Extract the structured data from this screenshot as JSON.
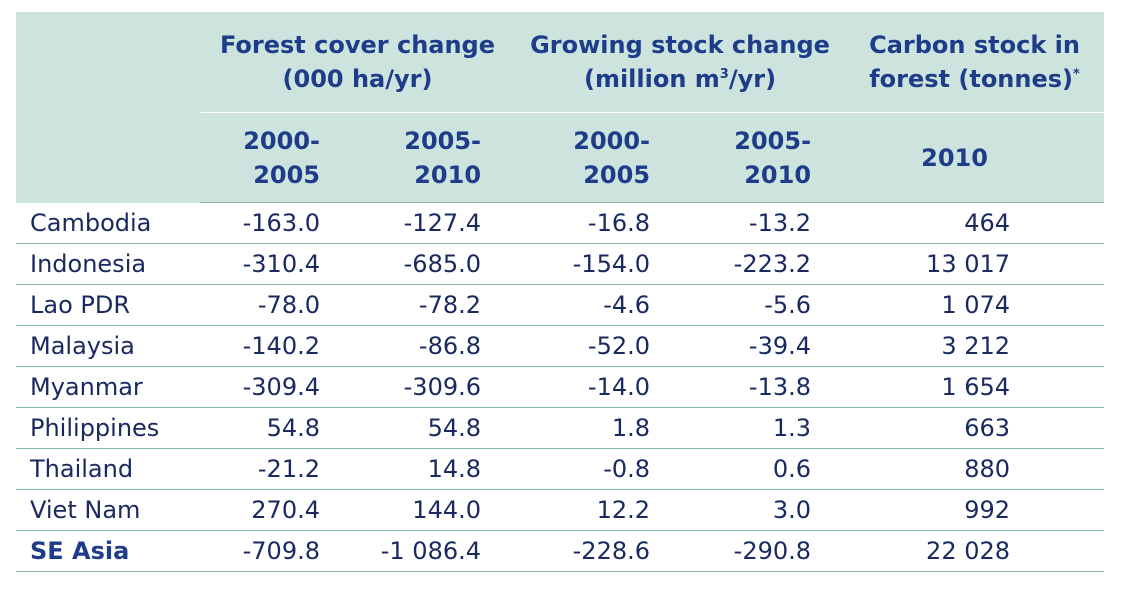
{
  "header": {
    "groups": {
      "forest_cover_line1": "Forest cover change",
      "forest_cover_line2": "(000 ha/yr)",
      "growing_stock_line1": "Growing stock change",
      "growing_stock_line2_pre": "(million m",
      "growing_stock_sup": "3",
      "growing_stock_line2_post": "/yr)",
      "carbon_line1": "Carbon stock in",
      "carbon_line2": "forest (tonnes)",
      "carbon_sup": "*"
    },
    "periods": {
      "fc_p1_line1": "2000-",
      "fc_p1_line2": "2005",
      "fc_p2_line1": "2005-",
      "fc_p2_line2": "2010",
      "gs_p1_line1": "2000-",
      "gs_p1_line2": "2005",
      "gs_p2_line1": "2005-",
      "gs_p2_line2": "2010",
      "carbon_year": "2010"
    }
  },
  "rows": [
    {
      "country": "Cambodia",
      "fc1": "-163.0",
      "fc2": "-127.4",
      "gs1": "-16.8",
      "gs2": "-13.2",
      "carbon": "464"
    },
    {
      "country": "Indonesia",
      "fc1": "-310.4",
      "fc2": "-685.0",
      "gs1": "-154.0",
      "gs2": "-223.2",
      "carbon": "13 017"
    },
    {
      "country": "Lao PDR",
      "fc1": "-78.0",
      "fc2": "-78.2",
      "gs1": "-4.6",
      "gs2": "-5.6",
      "carbon": "1 074"
    },
    {
      "country": "Malaysia",
      "fc1": "-140.2",
      "fc2": "-86.8",
      "gs1": "-52.0",
      "gs2": "-39.4",
      "carbon": "3 212"
    },
    {
      "country": "Myanmar",
      "fc1": "-309.4",
      "fc2": "-309.6",
      "gs1": "-14.0",
      "gs2": "-13.8",
      "carbon": "1 654"
    },
    {
      "country": "Philippines",
      "fc1": "54.8",
      "fc2": "54.8",
      "gs1": "1.8",
      "gs2": "1.3",
      "carbon": "663"
    },
    {
      "country": "Thailand",
      "fc1": "-21.2",
      "fc2": "14.8",
      "gs1": "-0.8",
      "gs2": "0.6",
      "carbon": "880"
    },
    {
      "country": "Viet Nam",
      "fc1": "270.4",
      "fc2": "144.0",
      "gs1": "12.2",
      "gs2": "3.0",
      "carbon": "992"
    },
    {
      "country": "SE Asia",
      "fc1": "-709.8",
      "fc2": "-1 086.4",
      "gs1": "-228.6",
      "gs2": "-290.8",
      "carbon": "22 028"
    }
  ],
  "colors": {
    "header_bg": "#cde4de",
    "header_text": "#1f3c8a",
    "body_text": "#1a2a60",
    "rule": "#7fb8ab"
  }
}
